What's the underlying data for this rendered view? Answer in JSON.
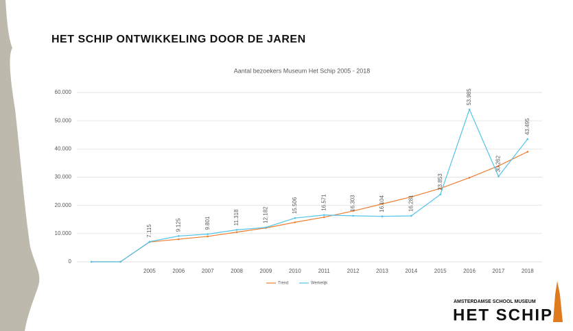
{
  "slide_title": "HET SCHIP ONTWIKKELING DOOR DE JAREN",
  "logo": {
    "line1": "AMSTERDAMSE SCHOOL MUSEUM",
    "line2": "HET SCHIP"
  },
  "chart_data": {
    "type": "line",
    "title": "Aantal bezoekers Museum Het Schip 2005 - 2018",
    "categories": [
      null,
      null,
      "2005",
      "2006",
      "2007",
      "2008",
      "2009",
      "2010",
      "2011",
      "2012",
      "2013",
      "2014",
      "2015",
      "2016",
      "2017",
      "2018"
    ],
    "series": [
      {
        "name": "Trend",
        "color": "#ed7d31",
        "values": [
          0,
          0,
          7000,
          8000,
          9000,
          10500,
          12000,
          14000,
          15800,
          18000,
          20500,
          23000,
          26000,
          29800,
          34000,
          39000
        ]
      },
      {
        "name": "Werkelijk",
        "color": "#4fc3ea",
        "values": [
          0,
          0,
          7115,
          9125,
          9801,
          11318,
          12182,
          15506,
          16571,
          16303,
          16104,
          16281,
          23853,
          53985,
          30262,
          43495
        ],
        "value_labels": [
          null,
          null,
          "7.115",
          "9.125",
          "9.801",
          "11.318",
          "12.182",
          "15.506",
          "16.571",
          "16.303",
          "16.104",
          "16.281",
          "23.853",
          "53.985",
          "30.262",
          "43.495"
        ]
      }
    ],
    "ylim": [
      0,
      60000
    ],
    "yticks": [
      0,
      {
        "value": 10000,
        "label": "10.000"
      },
      {
        "value": 20000,
        "label": "20.000"
      },
      {
        "value": 30000,
        "label": "30.000"
      },
      {
        "value": 40000,
        "label": "40.000"
      },
      {
        "value": 50000,
        "label": "50.000"
      },
      {
        "value": 60000,
        "label": "60.000"
      }
    ],
    "grid": true,
    "legend": "bottom"
  }
}
